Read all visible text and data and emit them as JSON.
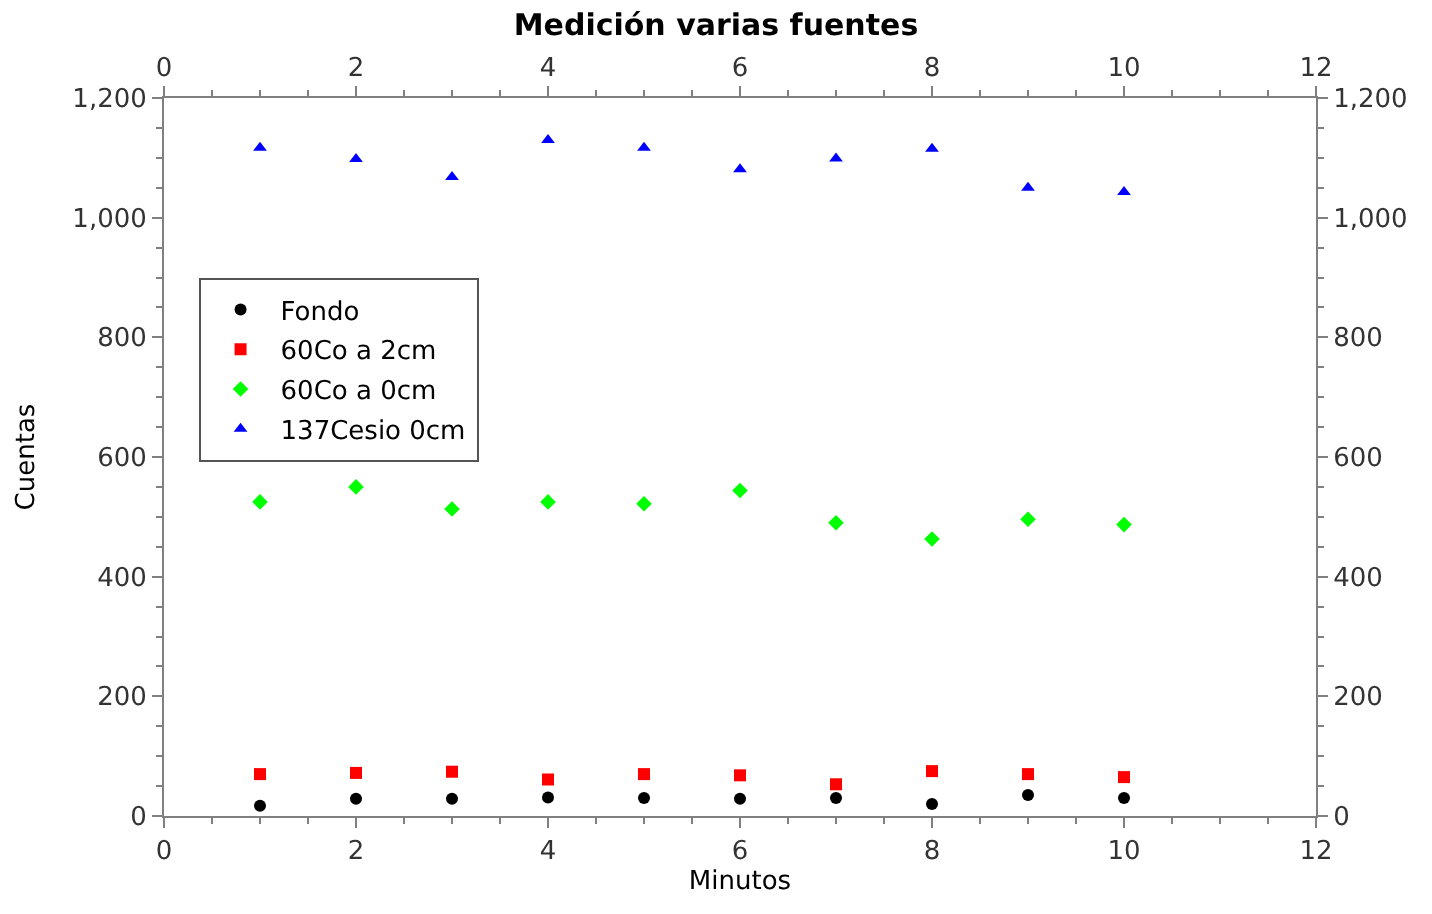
{
  "chart_data": {
    "type": "scatter",
    "title": "Medición varias fuentes",
    "xlabel": "Minutos",
    "ylabel": "Cuentas",
    "x": [
      1,
      2,
      3,
      4,
      5,
      6,
      7,
      8,
      9,
      10
    ],
    "series": [
      {
        "name": "Fondo",
        "color": "#000000",
        "marker": "circle",
        "values": [
          17,
          29,
          29,
          31,
          30,
          29,
          30,
          20,
          35,
          30
        ]
      },
      {
        "name": "60Co a 2cm",
        "color": "#ff0000",
        "marker": "square",
        "values": [
          70,
          72,
          74,
          61,
          70,
          68,
          53,
          75,
          70,
          65
        ]
      },
      {
        "name": "60Co a 0cm",
        "color": "#00ff00",
        "marker": "diamond",
        "values": [
          525,
          550,
          513,
          525,
          522,
          544,
          490,
          463,
          496,
          487
        ]
      },
      {
        "name": "137Cesio 0cm",
        "color": "#0000ff",
        "marker": "triangle",
        "values": [
          1117,
          1098,
          1068,
          1130,
          1117,
          1081,
          1099,
          1115,
          1050,
          1043
        ]
      }
    ],
    "xlim": [
      0,
      12
    ],
    "xticks": [
      0,
      2,
      4,
      6,
      8,
      10,
      12
    ],
    "x2lim": [
      0,
      12
    ],
    "x2ticks": [
      0,
      2,
      4,
      6,
      8,
      10,
      12
    ],
    "ylim": [
      0,
      1200
    ],
    "yticks": [
      0,
      200,
      400,
      600,
      800,
      {
        "value": 1000,
        "label": "1,000"
      },
      {
        "value": 1200,
        "label": "1,200"
      }
    ],
    "y2lim": [
      0,
      1200
    ],
    "y2ticks": [
      0,
      200,
      400,
      600,
      800,
      {
        "value": 1000,
        "label": "1,000"
      },
      {
        "value": 1200,
        "label": "1,200"
      }
    ],
    "legend": "top left"
  }
}
